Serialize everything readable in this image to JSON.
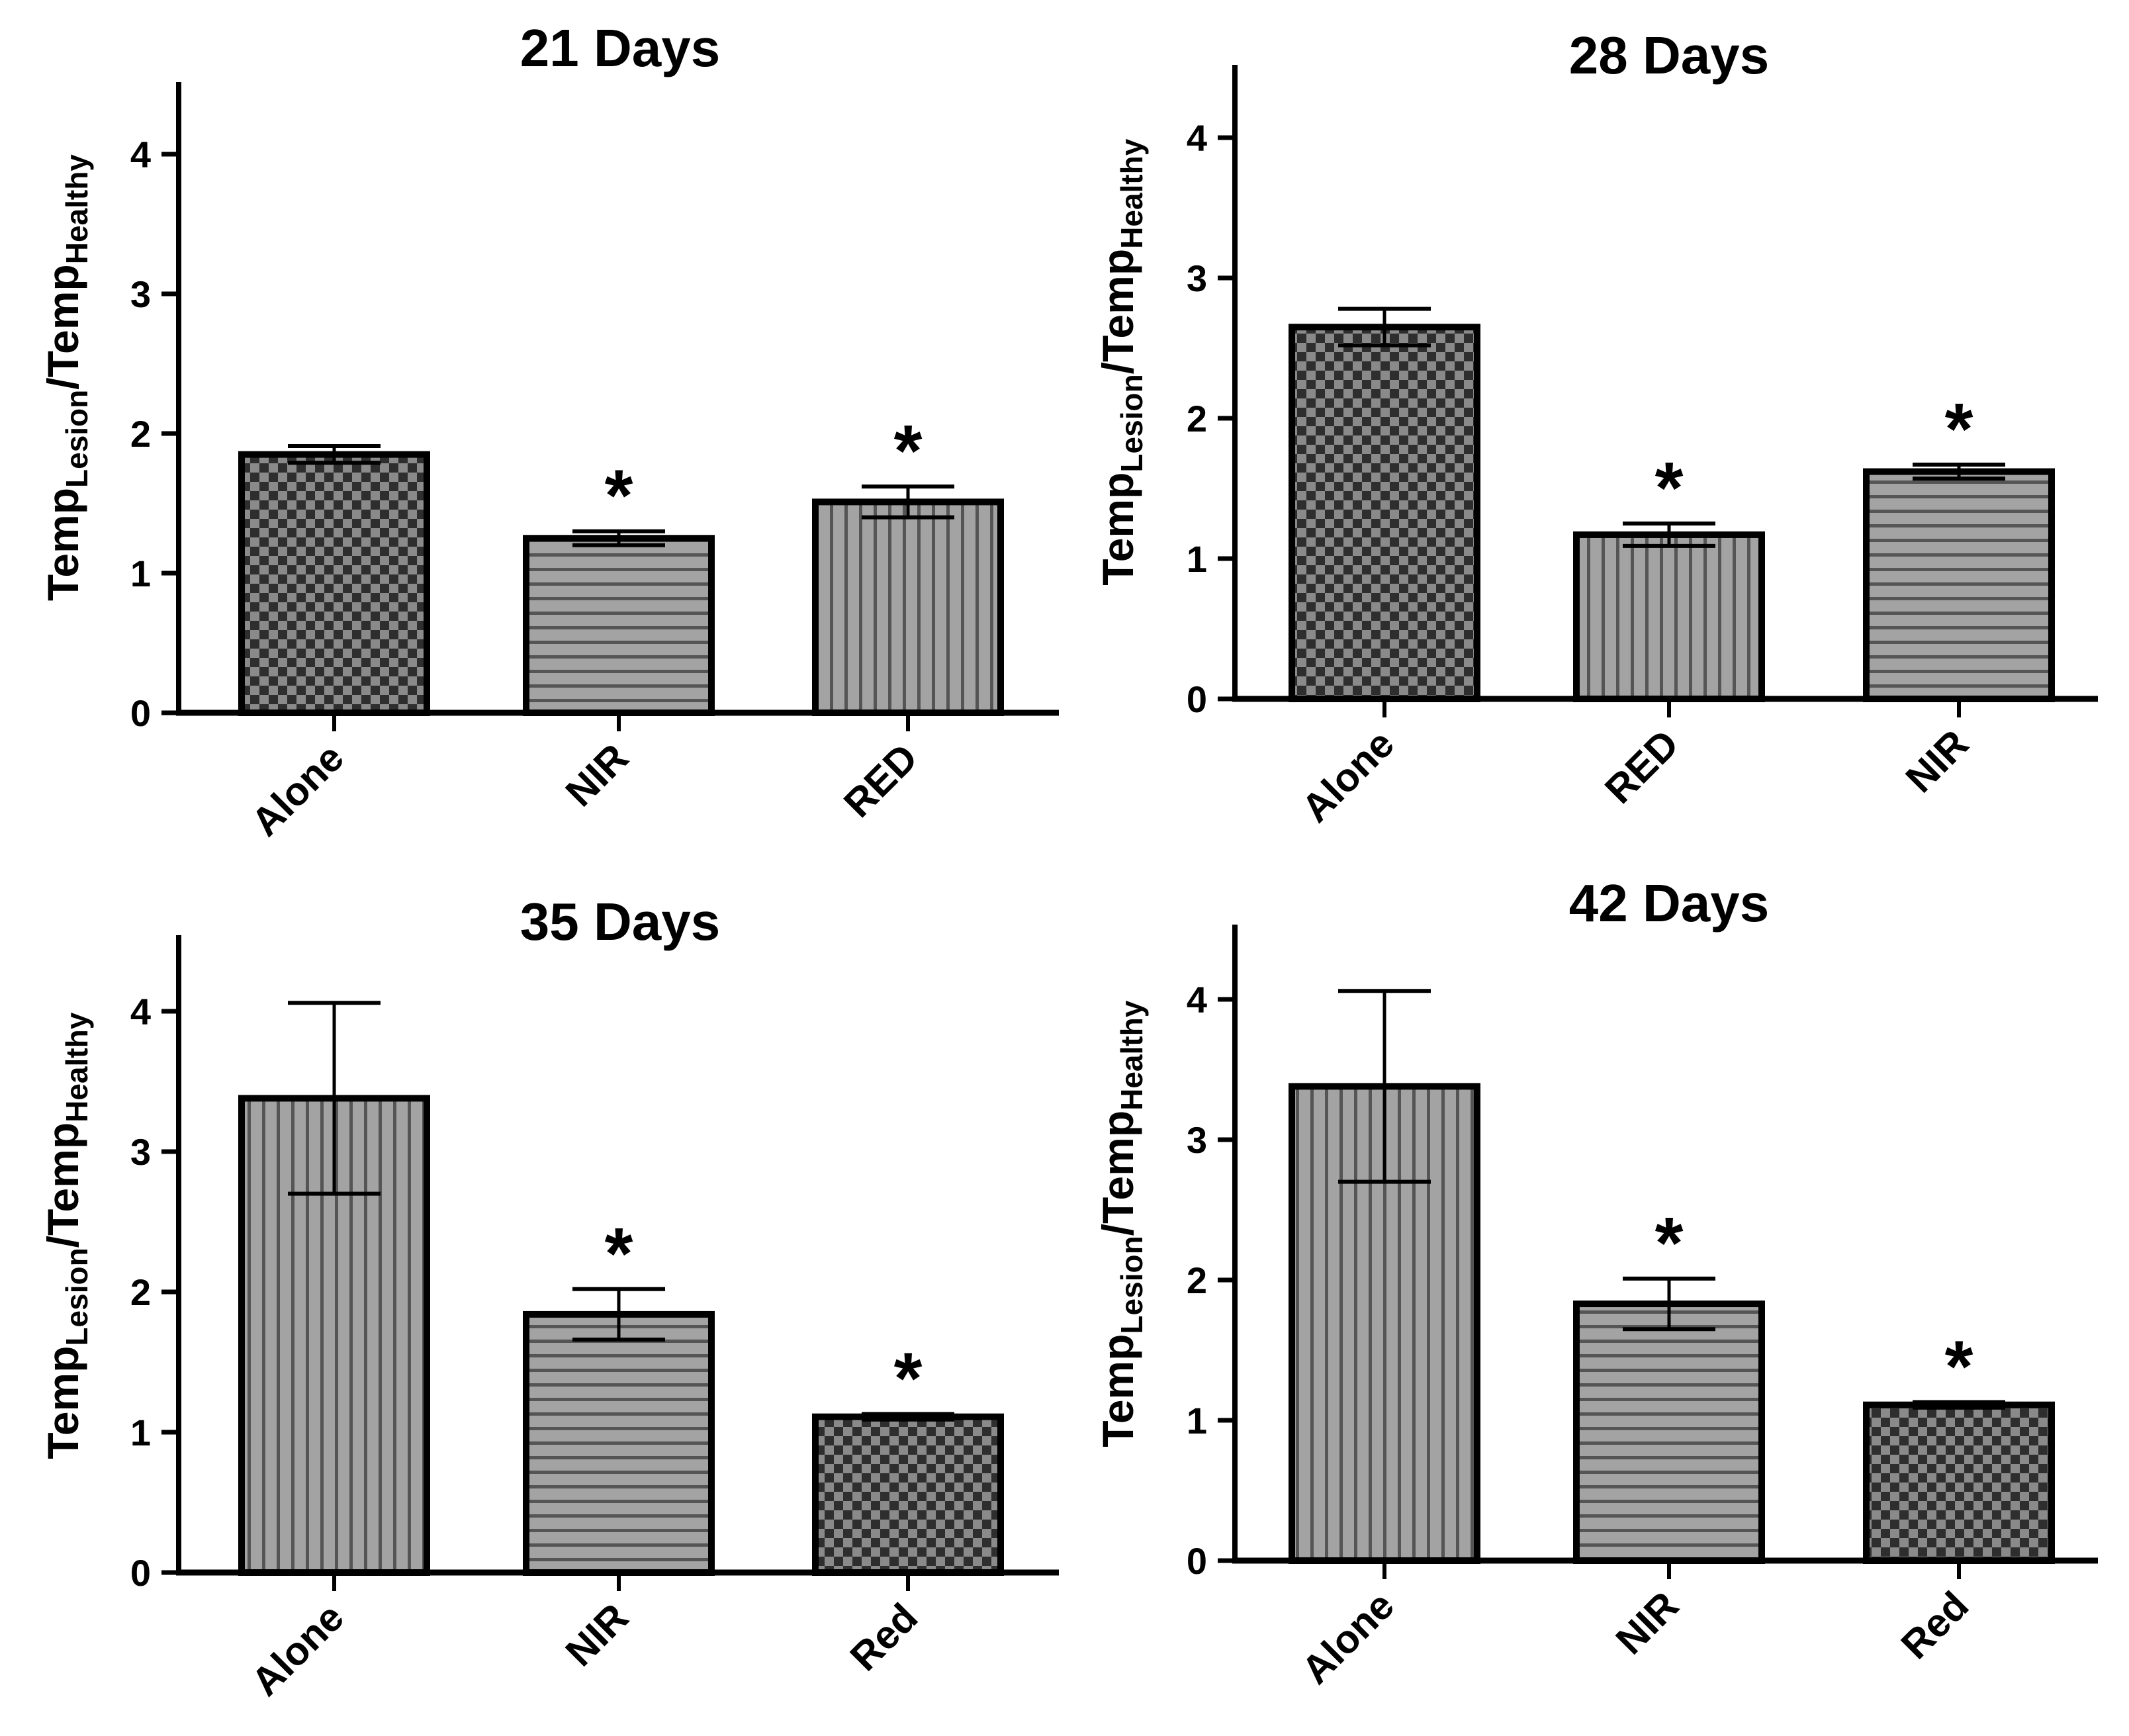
{
  "chart_data": [
    {
      "type": "bar",
      "title": "21 Days",
      "categories": [
        "Alone",
        "NIR",
        "RED"
      ],
      "values": [
        1.85,
        1.25,
        1.51
      ],
      "errors": [
        0.06,
        0.05,
        0.11
      ],
      "patterns": [
        "checker",
        "hstripe",
        "vstripe"
      ],
      "significance": [
        "",
        "*",
        "*"
      ],
      "ylabel": {
        "main": "Temp",
        "sub1": "Lesion",
        "sep": "/Temp",
        "sub2": "Healthy"
      },
      "ylim": [
        0,
        4.5
      ],
      "yticks": [
        "0",
        "1",
        "2",
        "3",
        "4"
      ],
      "grid": false
    },
    {
      "type": "bar",
      "title": "28 Days",
      "categories": [
        "Alone",
        "RED",
        "NIR"
      ],
      "values": [
        2.65,
        1.17,
        1.62
      ],
      "errors": [
        0.13,
        0.08,
        0.05
      ],
      "patterns": [
        "checker",
        "vstripe",
        "hstripe"
      ],
      "significance": [
        "",
        "*",
        "*"
      ],
      "ylabel": {
        "main": "Temp",
        "sub1": "Lesion",
        "sep": "/Temp",
        "sub2": "Healthy"
      },
      "ylim": [
        0,
        4.5
      ],
      "yticks": [
        "0",
        "1",
        "2",
        "3",
        "4"
      ],
      "grid": false
    },
    {
      "type": "bar",
      "title": "35 Days",
      "categories": [
        "Alone",
        "NIR",
        "Red"
      ],
      "values": [
        3.38,
        1.84,
        1.11
      ],
      "errors": [
        0.68,
        0.18,
        0.02
      ],
      "patterns": [
        "vstripe",
        "hstripe",
        "checker"
      ],
      "significance": [
        "",
        "*",
        "*"
      ],
      "ylabel": {
        "main": "Temp",
        "sub1": "Lesion",
        "sep": "/Temp",
        "sub2": "Healthy"
      },
      "ylim": [
        0,
        4.5
      ],
      "yticks": [
        "0",
        "1",
        "2",
        "3",
        "4"
      ],
      "grid": false
    },
    {
      "type": "bar",
      "title": "42 Days",
      "categories": [
        "Alone",
        "NIR",
        "Red"
      ],
      "values": [
        3.38,
        1.83,
        1.11
      ],
      "errors": [
        0.68,
        0.18,
        0.02
      ],
      "patterns": [
        "vstripe",
        "hstripe",
        "checker"
      ],
      "significance": [
        "",
        "*",
        "*"
      ],
      "ylabel": {
        "main": "Temp",
        "sub1": "Lesion",
        "sep": "/Temp",
        "sub2": "Healthy"
      },
      "ylim": [
        0,
        4.5
      ],
      "yticks": [
        "0",
        "1",
        "2",
        "3",
        "4"
      ],
      "grid": false
    }
  ],
  "colors": {
    "bar_fill": "#9a9a9a",
    "checker_dark": "#2e2e2e",
    "checker_light": "#8a8a8a",
    "stripe_line": "#555555",
    "axis": "#000000"
  }
}
